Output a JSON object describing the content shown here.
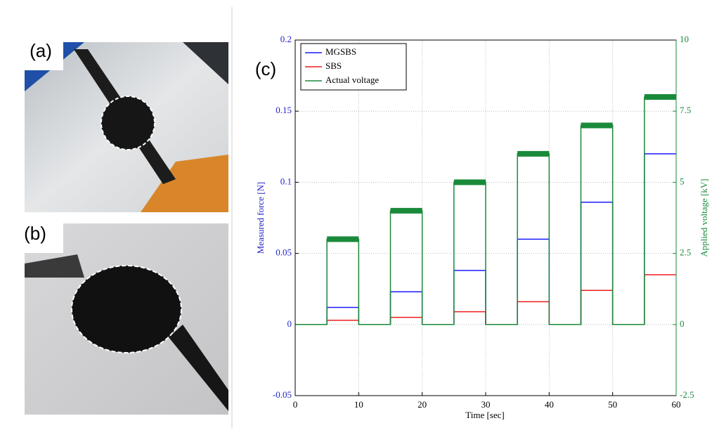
{
  "panels": [
    {
      "label": "(a)"
    },
    {
      "label": "(b)"
    }
  ],
  "chart_data": {
    "type": "line",
    "annotation": "(c)",
    "xlabel": "Time [sec]",
    "ylabel": "Measured force [N]",
    "y2label": "Applied voltage [kV]",
    "x": [
      0,
      5,
      5,
      10,
      10,
      15,
      15,
      20,
      20,
      25,
      25,
      30,
      30,
      35,
      35,
      40,
      40,
      45,
      45,
      50,
      50,
      55,
      55,
      60
    ],
    "series": [
      {
        "name": "MGSBS",
        "color": "#1a1aff",
        "values": [
          0,
          0,
          0.012,
          0.012,
          0,
          0,
          0.023,
          0.023,
          0,
          0,
          0.038,
          0.038,
          0,
          0,
          0.06,
          0.06,
          0,
          0,
          0.086,
          0.086,
          0,
          0,
          0.12,
          0.12
        ]
      },
      {
        "name": "SBS",
        "color": "#ee1c1c",
        "values": [
          0,
          0,
          0.003,
          0.003,
          0,
          0,
          0.005,
          0.005,
          0,
          0,
          0.009,
          0.009,
          0,
          0,
          0.016,
          0.016,
          0,
          0,
          0.024,
          0.024,
          0,
          0,
          0.035,
          0.035
        ]
      },
      {
        "name": "Actual voltage",
        "color": "#1a8a3a",
        "axis": "y2",
        "values": [
          0,
          0,
          3,
          3,
          0,
          0,
          4,
          4,
          0,
          0,
          5,
          5,
          0,
          0,
          6,
          6,
          0,
          0,
          7,
          7,
          0,
          0,
          8,
          8
        ]
      }
    ],
    "xlim": [
      0,
      60
    ],
    "xticks": [
      0,
      10,
      20,
      30,
      40,
      50,
      60
    ],
    "ylim": [
      -0.05,
      0.2
    ],
    "yticks": [
      -0.05,
      0,
      0.05,
      0.1,
      0.15,
      0.2
    ],
    "y2lim": [
      -2.5,
      10
    ],
    "y2ticks": [
      -2.5,
      0,
      2.5,
      5,
      7.5,
      10
    ],
    "grid": true,
    "legend": "upper left"
  }
}
